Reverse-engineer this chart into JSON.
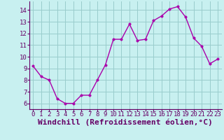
{
  "x": [
    0,
    1,
    2,
    3,
    4,
    5,
    6,
    7,
    8,
    9,
    10,
    11,
    12,
    13,
    14,
    15,
    16,
    17,
    18,
    19,
    20,
    21,
    22,
    23
  ],
  "y": [
    9.2,
    8.3,
    8.0,
    6.4,
    6.0,
    6.0,
    6.7,
    6.7,
    8.0,
    9.3,
    11.5,
    11.5,
    12.8,
    11.4,
    11.5,
    13.1,
    13.5,
    14.1,
    14.3,
    13.4,
    11.6,
    10.9,
    9.4,
    9.8
  ],
  "line_color": "#aa00aa",
  "marker_color": "#aa00aa",
  "bg_color": "#c8f0f0",
  "grid_color": "#99cccc",
  "xlabel": "Windchill (Refroidissement éolien,°C)",
  "xlabel_color": "#660066",
  "ylim": [
    5.5,
    14.75
  ],
  "xlim": [
    -0.5,
    23.5
  ],
  "yticks": [
    6,
    7,
    8,
    9,
    10,
    11,
    12,
    13,
    14
  ],
  "xticks": [
    0,
    1,
    2,
    3,
    4,
    5,
    6,
    7,
    8,
    9,
    10,
    11,
    12,
    13,
    14,
    15,
    16,
    17,
    18,
    19,
    20,
    21,
    22,
    23
  ],
  "tick_label_fontsize": 6.5,
  "xlabel_fontsize": 8,
  "marker_size": 2.5,
  "line_width": 1.0
}
